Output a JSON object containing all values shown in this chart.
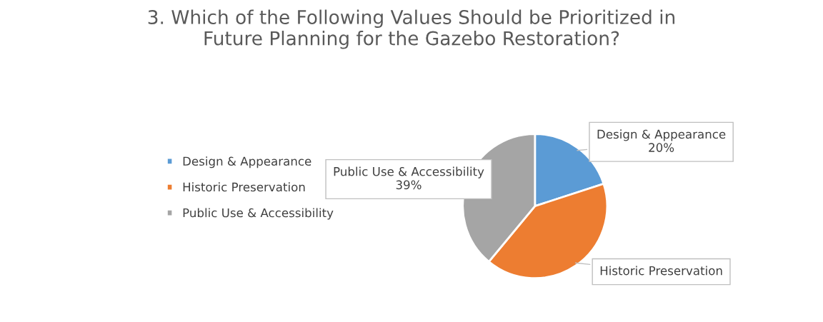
{
  "chart_data": {
    "type": "pie",
    "title": "3. Which of the Following Values Should be Prioritized in\nFuture Planning for the Gazebo Restoration?",
    "categories": [
      "Design & Appearance",
      "Historic Preservation",
      "Public Use & Accessibility"
    ],
    "values": [
      20,
      41,
      39
    ],
    "colors": [
      "#5b9bd5",
      "#ed7d31",
      "#a5a5a5"
    ],
    "value_labels": [
      "20%",
      null,
      "39%"
    ],
    "legend": "left"
  }
}
